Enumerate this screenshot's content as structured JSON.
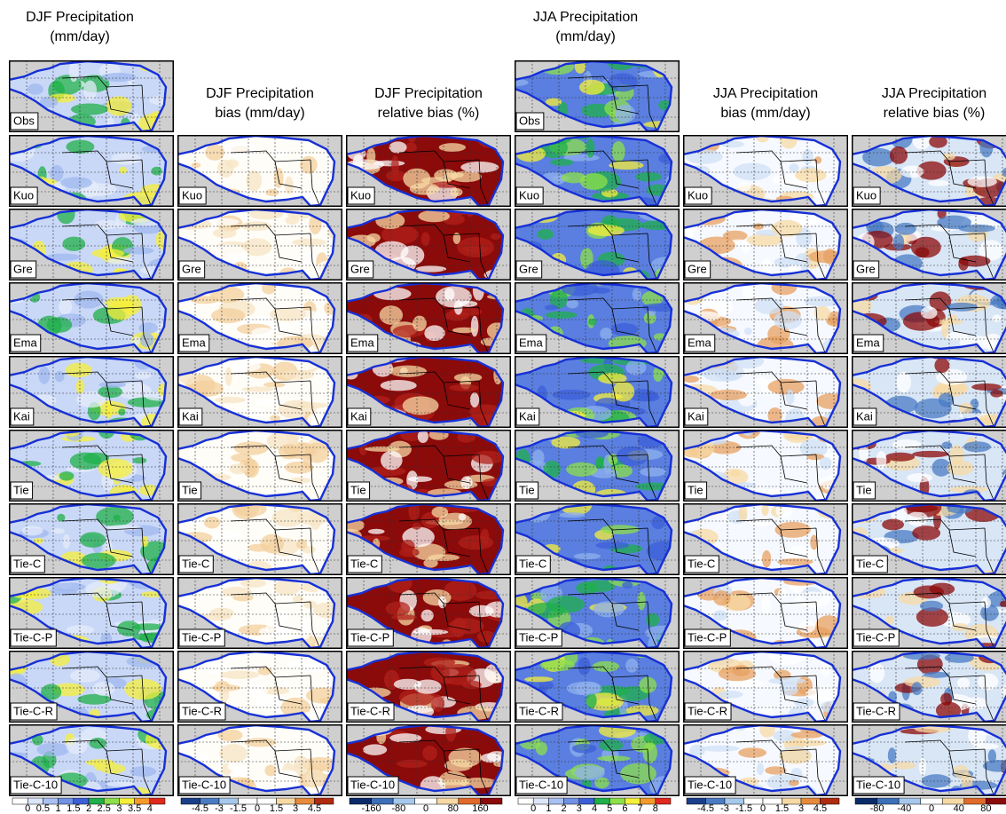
{
  "columns": [
    {
      "title": [
        "DJF Precipitation",
        "(mm/day)"
      ],
      "has_obs": true,
      "colorbar": {
        "ticks": [
          "0",
          "0.5",
          "1",
          "1.5",
          "2",
          "2.5",
          "3",
          "3.5",
          "4"
        ],
        "colors": [
          "#ffffff",
          "#dce6fa",
          "#a9c1f2",
          "#6f92e6",
          "#3c5fd8",
          "#1fb04a",
          "#8ee04a",
          "#f5ef3a",
          "#f59a2a",
          "#e0281e"
        ]
      }
    },
    {
      "title": [
        "DJF Precipitation",
        "bias (mm/day)"
      ],
      "has_obs": false,
      "colorbar": {
        "ticks": [
          "-4.5",
          "-3",
          "-1.5",
          "0",
          "1.5",
          "3",
          "4.5"
        ],
        "colors": [
          "#1a3f8a",
          "#4a7cc4",
          "#a6c8ec",
          "#ffffff",
          "#ffffff",
          "#f7d9a4",
          "#e88a3c",
          "#b02a10"
        ]
      }
    },
    {
      "title": [
        "DJF Precipitation",
        "relative bias (%)"
      ],
      "has_obs": false,
      "colorbar": {
        "ticks": [
          "-160",
          "-80",
          "0",
          "80",
          "160"
        ],
        "colors": [
          "#0a2a6a",
          "#3d6fb8",
          "#a6c8ec",
          "#ffffff",
          "#f7d9a4",
          "#e06a2a",
          "#8b0a0a"
        ]
      }
    },
    {
      "title": [
        "JJA Precipitation",
        "(mm/day)"
      ],
      "has_obs": true,
      "colorbar": {
        "ticks": [
          "0",
          "1",
          "2",
          "3",
          "4",
          "5",
          "6",
          "7",
          "8"
        ],
        "colors": [
          "#ffffff",
          "#dce6fa",
          "#a9c1f2",
          "#6f92e6",
          "#3c5fd8",
          "#1fb04a",
          "#8ee04a",
          "#f5ef3a",
          "#f59a2a",
          "#e0281e"
        ]
      }
    },
    {
      "title": [
        "JJA Precipitation",
        "bias (mm/day)"
      ],
      "has_obs": false,
      "colorbar": {
        "ticks": [
          "-4.5",
          "-3",
          "-1.5",
          "0",
          "1.5",
          "3",
          "4.5"
        ],
        "colors": [
          "#1a3f8a",
          "#4a7cc4",
          "#a6c8ec",
          "#ffffff",
          "#ffffff",
          "#f7d9a4",
          "#e88a3c",
          "#b02a10"
        ]
      }
    },
    {
      "title": [
        "JJA Precipitation",
        "relative bias (%)"
      ],
      "has_obs": false,
      "colorbar": {
        "ticks": [
          "-80",
          "-40",
          "0",
          "40",
          "80"
        ],
        "colors": [
          "#0a2a6a",
          "#3d6fb8",
          "#a6c8ec",
          "#ffffff",
          "#f7d9a4",
          "#e06a2a",
          "#8b0a0a"
        ]
      }
    }
  ],
  "rows": [
    "Obs",
    "Kuo",
    "Gre",
    "Ema",
    "Kai",
    "Tie",
    "Tie-C",
    "Tie-C-P",
    "Tie-C-R",
    "Tie-C-10"
  ]
}
